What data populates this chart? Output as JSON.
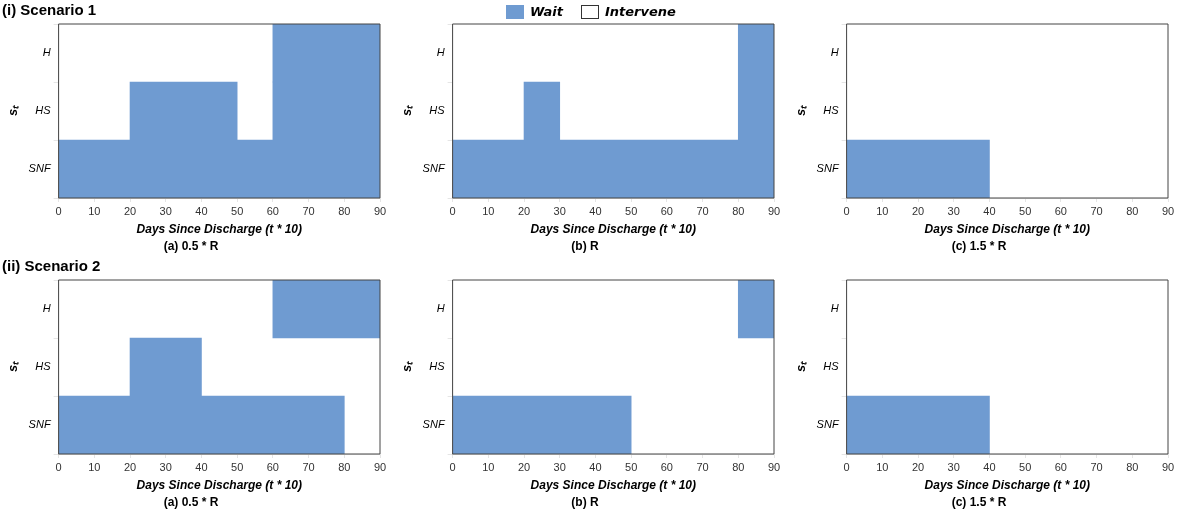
{
  "chart_data": [
    {
      "type": "bar",
      "orientation": "horizontal",
      "legend": "top",
      "annotations": [
        "Intervene"
      ],
      "subtitle": "(i) Scenario 1",
      "title": "(a) 0.5 * R",
      "xlabel": "Days Since Discharge (t * 10)",
      "ylabel": "sₜ",
      "categories": [
        "H",
        "HS",
        "SNF"
      ],
      "xlim": [
        0,
        90
      ],
      "xticks": [
        0,
        10,
        20,
        30,
        40,
        50,
        60,
        70,
        80,
        90
      ],
      "series": [
        {
          "name": "Wait",
          "color": "#6f9bd1",
          "values": [
            30,
            30,
            90
          ],
          "base": [
            60,
            20,
            0
          ]
        },
        {
          "color": "#6f9bd1",
          "values": [
            null,
            30,
            null
          ],
          "base": [
            null,
            60,
            null
          ]
        }
      ]
    },
    {
      "type": "bar",
      "orientation": "horizontal",
      "title": "(b) R",
      "xlabel": "Days Since Discharge (t * 10)",
      "ylabel": "sₜ",
      "categories": [
        "H",
        "HS",
        "SNF"
      ],
      "xlim": [
        0,
        90
      ],
      "xticks": [
        0,
        10,
        20,
        30,
        40,
        50,
        60,
        70,
        80,
        90
      ],
      "series": [
        {
          "color": "#6f9bd1",
          "values": [
            10,
            10,
            90
          ],
          "base": [
            80,
            20,
            0
          ]
        },
        {
          "color": "#6f9bd1",
          "values": [
            null,
            10,
            null
          ],
          "base": [
            null,
            80,
            null
          ]
        }
      ]
    },
    {
      "type": "bar",
      "orientation": "horizontal",
      "title": "(c) 1.5 * R",
      "xlabel": "Days Since Discharge (t * 10)",
      "ylabel": "sₜ",
      "categories": [
        "H",
        "HS",
        "SNF"
      ],
      "xlim": [
        0,
        90
      ],
      "xticks": [
        0,
        10,
        20,
        30,
        40,
        50,
        60,
        70,
        80,
        90
      ],
      "series": [
        {
          "color": "#6f9bd1",
          "values": [
            null,
            null,
            40
          ],
          "base": [
            null,
            null,
            0
          ]
        }
      ]
    },
    {
      "type": "bar",
      "orientation": "horizontal",
      "subtitle": "(ii) Scenario 2",
      "title": "(a) 0.5 * R",
      "xlabel": "Days Since Discharge (t * 10)",
      "ylabel": "sₜ",
      "categories": [
        "H",
        "HS",
        "SNF"
      ],
      "xlim": [
        0,
        90
      ],
      "xticks": [
        0,
        10,
        20,
        30,
        40,
        50,
        60,
        70,
        80,
        90
      ],
      "series": [
        {
          "color": "#6f9bd1",
          "values": [
            30,
            20,
            80
          ],
          "base": [
            60,
            20,
            0
          ]
        }
      ]
    },
    {
      "type": "bar",
      "orientation": "horizontal",
      "title": "(b) R",
      "xlabel": "Days Since Discharge (t * 10)",
      "ylabel": "sₜ",
      "categories": [
        "H",
        "HS",
        "SNF"
      ],
      "xlim": [
        0,
        90
      ],
      "xticks": [
        0,
        10,
        20,
        30,
        40,
        50,
        60,
        70,
        80,
        90
      ],
      "series": [
        {
          "color": "#6f9bd1",
          "values": [
            10,
            null,
            50
          ],
          "base": [
            80,
            null,
            0
          ]
        }
      ]
    },
    {
      "type": "bar",
      "orientation": "horizontal",
      "title": "(c) 1.5 * R",
      "xlabel": "Days Since Discharge (t * 10)",
      "ylabel": "sₜ",
      "categories": [
        "H",
        "HS",
        "SNF"
      ],
      "xlim": [
        0,
        90
      ],
      "xticks": [
        0,
        10,
        20,
        30,
        40,
        50,
        60,
        70,
        80,
        90
      ],
      "series": [
        {
          "color": "#6f9bd1",
          "values": [
            null,
            null,
            40
          ],
          "base": [
            null,
            null,
            0
          ]
        }
      ]
    }
  ]
}
